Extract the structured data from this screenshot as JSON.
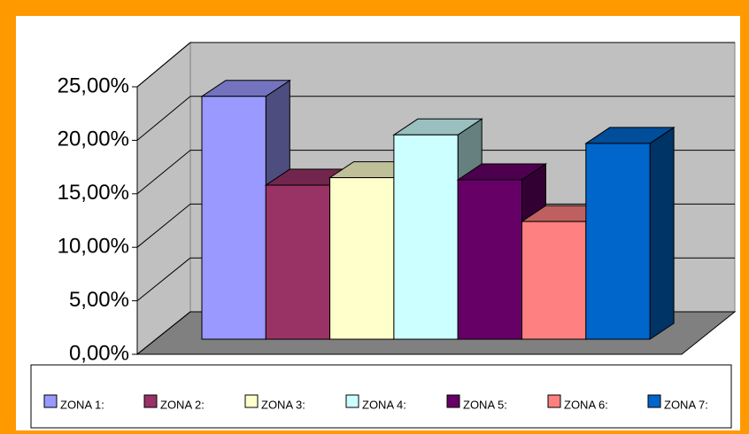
{
  "chart_data": {
    "type": "bar",
    "categories": [
      "ZONA 1:",
      "ZONA 2:",
      "ZONA 3:",
      "ZONA 4:",
      "ZONA 5:",
      "ZONA 6:",
      "ZONA 7:"
    ],
    "values": [
      22.7,
      14.4,
      15.1,
      19.1,
      14.9,
      11.0,
      18.3
    ],
    "colors": [
      "#9999ff",
      "#993366",
      "#ffffcc",
      "#ccffff",
      "#660066",
      "#ff8080",
      "#0066cc"
    ],
    "ylim": [
      0,
      25
    ],
    "yticks": [
      {
        "value": 0,
        "label": "0,00%"
      },
      {
        "value": 5,
        "label": "5,00%"
      },
      {
        "value": 10,
        "label": "10,00%"
      },
      {
        "value": 15,
        "label": "15,00%"
      },
      {
        "value": 20,
        "label": "20,00%"
      },
      {
        "value": 25,
        "label": "25,00%"
      }
    ],
    "grid": true,
    "legend": "bottom"
  }
}
